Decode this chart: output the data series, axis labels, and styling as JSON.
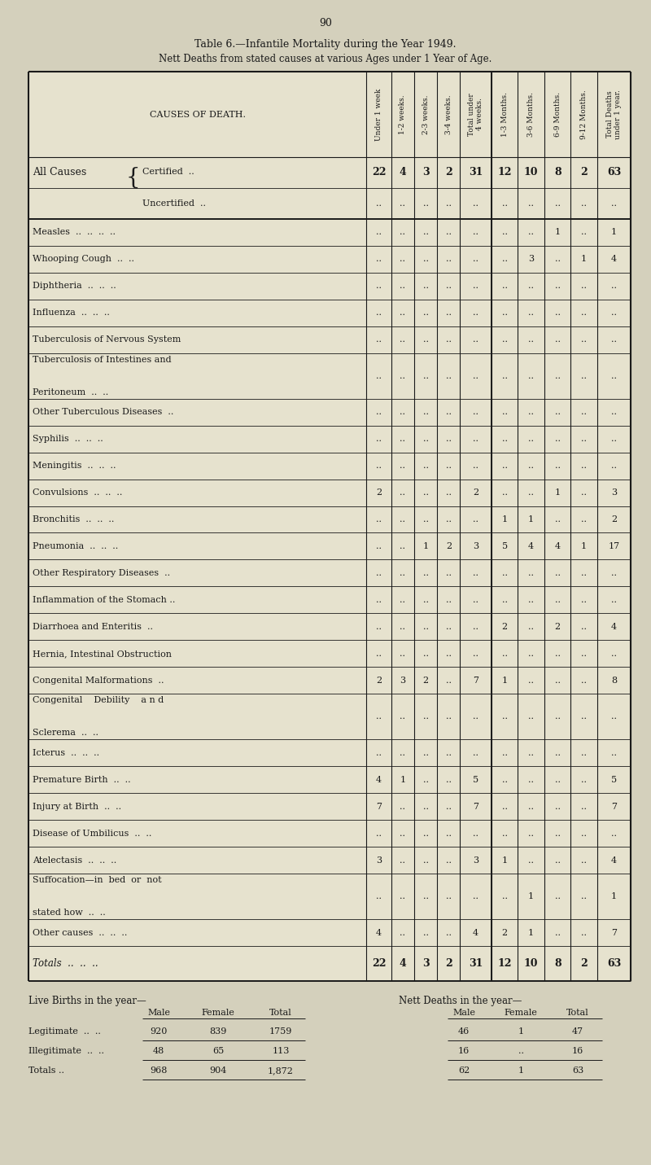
{
  "page_number": "90",
  "title_line1": "Table 6.—Infantile Mortality during the Year 1949.",
  "title_line2": "Nett Deaths from stated causes at various Ages under 1 Year of Age.",
  "col_headers": [
    "Under 1 week",
    "1-2 weeks.",
    "2-3 weeks.",
    "3-4 weeks.",
    "Total under\n4 weeks.",
    "1-3 Months.",
    "3-6 Months.",
    "6-9 Months.",
    "9-12 Months.",
    "Total Deaths\nunder 1 year."
  ],
  "cause_label": "CAUSES OF DEATH.",
  "bg_color": "#d4d0bc",
  "table_bg": "#e6e2ce",
  "text_color": "#1a1a1a",
  "border_color": "#1a1a1a",
  "rows": [
    {
      "cause": "ALL_CAUSES_CERTIFIED",
      "vals": [
        "22",
        "4",
        "3",
        "2",
        "31",
        "12",
        "10",
        "8",
        "2",
        "63"
      ],
      "bold": true,
      "special": "all_causes_certified"
    },
    {
      "cause": "ALL_CAUSES_UNCERTIFIED",
      "vals": [
        "..",
        "..",
        "..",
        "..",
        "..",
        "..",
        "..",
        "..",
        "..",
        ".."
      ],
      "bold": false,
      "special": "all_causes_uncertified"
    },
    {
      "cause": "Measles  ..  ..  ..  ..",
      "vals": [
        "..",
        "..",
        "..",
        "..",
        "..",
        "..",
        "..",
        "1",
        "..",
        "1"
      ],
      "bold": false
    },
    {
      "cause": "Whooping Cough  ..  ..",
      "vals": [
        "..",
        "..",
        "..",
        "..",
        "..",
        "..",
        "3",
        "..",
        "1",
        "4"
      ],
      "bold": false
    },
    {
      "cause": "Diphtheria  ..  ..  ..",
      "vals": [
        "..",
        "..",
        "..",
        "..",
        "..",
        "..",
        "..",
        "..",
        "..",
        ".."
      ],
      "bold": false
    },
    {
      "cause": "Influenza  ..  ..  ..",
      "vals": [
        "..",
        "..",
        "..",
        "..",
        "..",
        "..",
        "..",
        "..",
        "..",
        ".."
      ],
      "bold": false
    },
    {
      "cause": "Tuberculosis of Nervous System",
      "vals": [
        "..",
        "..",
        "..",
        "..",
        "..",
        "..",
        "..",
        "..",
        "..",
        ".."
      ],
      "bold": false
    },
    {
      "cause": "Tuberculosis of Intestines and\n    Peritoneum  ..  ..",
      "vals": [
        "..",
        "..",
        "..",
        "..",
        "..",
        "..",
        "..",
        "..",
        "..",
        ".."
      ],
      "bold": false,
      "two_line": true
    },
    {
      "cause": "Other Tuberculous Diseases  ..",
      "vals": [
        "..",
        "..",
        "..",
        "..",
        "..",
        "..",
        "..",
        "..",
        "..",
        ".."
      ],
      "bold": false
    },
    {
      "cause": "Syphilis  ..  ..  ..",
      "vals": [
        "..",
        "..",
        "..",
        "..",
        "..",
        "..",
        "..",
        "..",
        "..",
        ".."
      ],
      "bold": false
    },
    {
      "cause": "Meningitis  ..  ..  ..",
      "vals": [
        "..",
        "..",
        "..",
        "..",
        "..",
        "..",
        "..",
        "..",
        "..",
        ".."
      ],
      "bold": false
    },
    {
      "cause": "Convulsions  ..  ..  ..",
      "vals": [
        "2",
        "..",
        "..",
        "..",
        "2",
        "..",
        "..",
        "1",
        "..",
        "3"
      ],
      "bold": false
    },
    {
      "cause": "Bronchitis  ..  ..  ..",
      "vals": [
        "..",
        "..",
        "..",
        "..",
        "..",
        "1",
        "1",
        "..",
        "..",
        "2"
      ],
      "bold": false
    },
    {
      "cause": "Pneumonia  ..  ..  ..",
      "vals": [
        "..",
        "..",
        "1",
        "2",
        "3",
        "5",
        "4",
        "4",
        "1",
        "17"
      ],
      "bold": false
    },
    {
      "cause": "Other Respiratory Diseases  ..",
      "vals": [
        "..",
        "..",
        "..",
        "..",
        "..",
        "..",
        "..",
        "..",
        "..",
        ".."
      ],
      "bold": false
    },
    {
      "cause": "Inflammation of the Stomach ..",
      "vals": [
        "..",
        "..",
        "..",
        "..",
        "..",
        "..",
        "..",
        "..",
        "..",
        ".."
      ],
      "bold": false
    },
    {
      "cause": "Diarrhoea and Enteritis  ..",
      "vals": [
        "..",
        "..",
        "..",
        "..",
        "..",
        "2",
        "..",
        "2",
        "..",
        "4"
      ],
      "bold": false
    },
    {
      "cause": "Hernia, Intestinal Obstruction",
      "vals": [
        "..",
        "..",
        "..",
        "..",
        "..",
        "..",
        "..",
        "..",
        "..",
        ".."
      ],
      "bold": false
    },
    {
      "cause": "Congenital Malformations  ..",
      "vals": [
        "2",
        "3",
        "2",
        "..",
        "7",
        "1",
        "..",
        "..",
        "..",
        "8"
      ],
      "bold": false
    },
    {
      "cause": "Congenital    Debility    a n d\n    Sclerema  ..  ..",
      "vals": [
        "..",
        "..",
        "..",
        "..",
        "..",
        "..",
        "..",
        "..",
        "..",
        ".."
      ],
      "bold": false,
      "two_line": true
    },
    {
      "cause": "Icterus  ..  ..  ..",
      "vals": [
        "..",
        "..",
        "..",
        "..",
        "..",
        "..",
        "..",
        "..",
        "..",
        ".."
      ],
      "bold": false
    },
    {
      "cause": "Premature Birth  ..  ..",
      "vals": [
        "4",
        "1",
        "..",
        "..",
        "5",
        "..",
        "..",
        "..",
        "..",
        "5"
      ],
      "bold": false
    },
    {
      "cause": "Injury at Birth  ..  ..",
      "vals": [
        "7",
        "..",
        "..",
        "..",
        "7",
        "..",
        "..",
        "..",
        "..",
        "7"
      ],
      "bold": false
    },
    {
      "cause": "Disease of Umbilicus  ..  ..",
      "vals": [
        "..",
        "..",
        "..",
        "..",
        "..",
        "..",
        "..",
        "..",
        "..",
        ".."
      ],
      "bold": false
    },
    {
      "cause": "Atelectasis  ..  ..  ..",
      "vals": [
        "3",
        "..",
        "..",
        "..",
        "3",
        "1",
        "..",
        "..",
        "..",
        "4"
      ],
      "bold": false
    },
    {
      "cause": "Suffocation—in  bed  or  not\n    stated how  ..  ..",
      "vals": [
        "..",
        "..",
        "..",
        "..",
        "..",
        "..",
        "1",
        "..",
        "..",
        "1"
      ],
      "bold": false,
      "two_line": true
    },
    {
      "cause": "Other causes  ..  ..  ..",
      "vals": [
        "4",
        "..",
        "..",
        "..",
        "4",
        "2",
        "1",
        "..",
        "..",
        "7"
      ],
      "bold": false
    }
  ],
  "totals_row": {
    "cause": "Totals  ..  ..  ..",
    "vals": [
      "22",
      "4",
      "3",
      "2",
      "31",
      "12",
      "10",
      "8",
      "2",
      "63"
    ]
  },
  "footer_rows": [
    {
      "label": "Legitimate  ..  ..",
      "live": [
        "920",
        "839",
        "1759"
      ],
      "nett": [
        "46",
        "1",
        "47"
      ]
    },
    {
      "label": "Illegitimate  ..  ..",
      "live": [
        "48",
        "65",
        "113"
      ],
      "nett": [
        "16",
        "..",
        "16"
      ]
    },
    {
      "label": "Totals ..",
      "live": [
        "968",
        "904",
        "1,872"
      ],
      "nett": [
        "62",
        "1",
        "63"
      ]
    }
  ]
}
